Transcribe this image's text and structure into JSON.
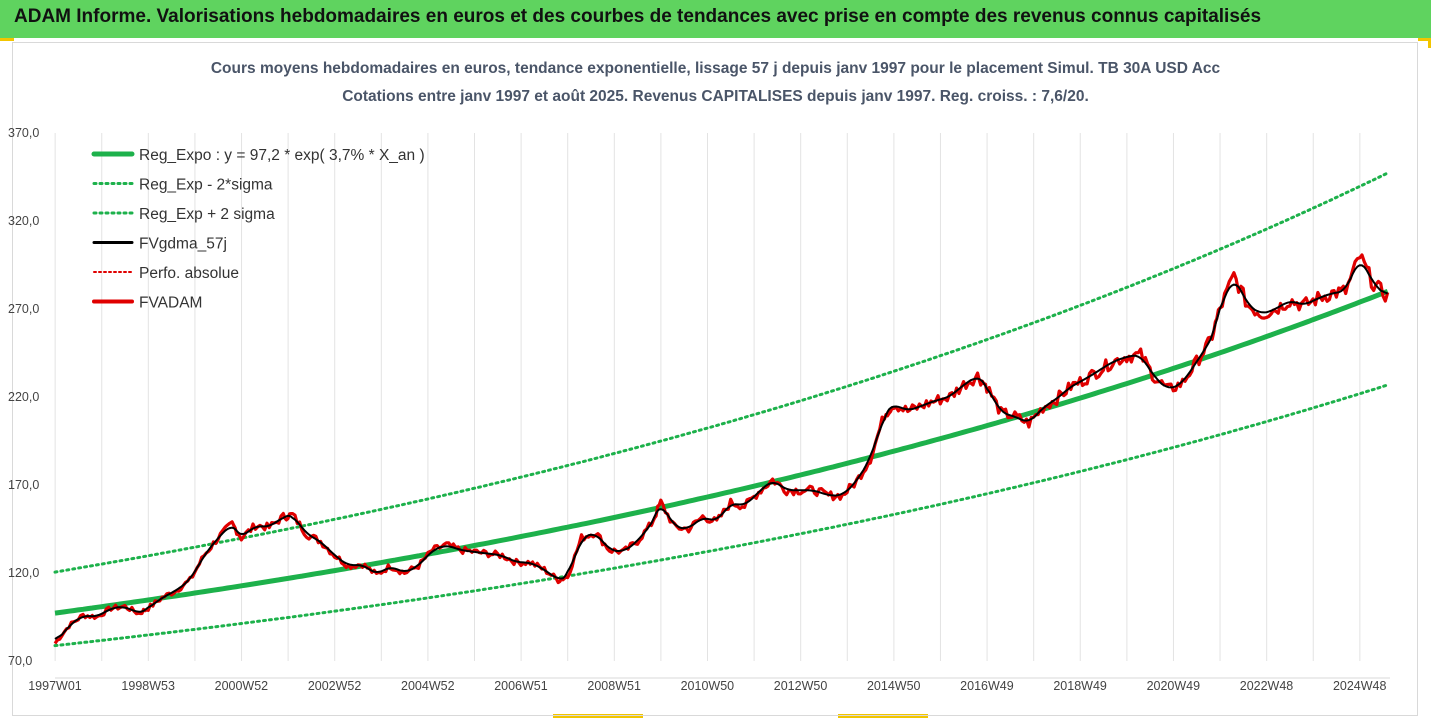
{
  "header": {
    "title": "ADAM Informe. Valorisations hebdomadaires en euros et des courbes de tendances avec prise en compte des revenus connus capitalisés"
  },
  "colors": {
    "header_bg": "#5fd35f",
    "green": "#1db14b",
    "black": "#000000",
    "red": "#e00000"
  },
  "chart_data": {
    "type": "line",
    "title_line1": "Cours moyens hebdomadaires en euros, tendance exponentielle, lissage 57 j depuis janv 1997 pour le placement Simul. TB 30A USD Acc",
    "title_line2": "Cotations entre janv 1997 et août 2025.  Revenus CAPITALISES depuis janv 1997. Reg. croiss. : 7,6/20.",
    "x_tick_labels": [
      "1997W01",
      "1998W53",
      "2000W52",
      "2002W52",
      "2004W52",
      "2006W51",
      "2008W51",
      "2010W50",
      "2012W50",
      "2014W50",
      "2016W49",
      "2018W49",
      "2020W49",
      "2022W48",
      "2024W48"
    ],
    "x_range_years": [
      1997.0,
      2025.65
    ],
    "y_ticks": [
      70,
      120,
      170,
      220,
      270,
      320,
      370
    ],
    "y_tick_labels": [
      "70,0",
      "120,0",
      "170,0",
      "220,0",
      "270,0",
      "320,0",
      "370,0"
    ],
    "ylim": [
      70,
      370
    ],
    "grid": "vertical",
    "legend_position": "top-left",
    "regression": {
      "a": 97.2,
      "rate": 0.037,
      "sigma_factor_low": 0.81,
      "sigma_factor_high": 1.24
    },
    "series": [
      {
        "name": "Reg_Expo : y = 97,2 * exp( 3,7% *  X_an )",
        "style": "solid-green"
      },
      {
        "name": "Reg_Exp - 2*sigma",
        "style": "dotted-green"
      },
      {
        "name": "Reg_Exp + 2 sigma",
        "style": "dotted-green"
      },
      {
        "name": "FVgdma_57j",
        "style": "solid-black"
      },
      {
        "name": "Perfo. absolue",
        "style": "dotted-red"
      },
      {
        "name": "FVADAM",
        "style": "solid-red",
        "x": [
          1997.0,
          1997.3,
          1997.6,
          1997.9,
          1998.2,
          1998.5,
          1998.8,
          1999.0,
          1999.3,
          1999.6,
          1999.9,
          2000.2,
          2000.5,
          2000.8,
          2001.0,
          2001.3,
          2001.6,
          2001.9,
          2002.1,
          2002.4,
          2002.7,
          2003.0,
          2003.3,
          2003.6,
          2003.9,
          2004.2,
          2004.5,
          2004.8,
          2005.1,
          2005.4,
          2005.7,
          2006.0,
          2006.3,
          2006.6,
          2006.9,
          2007.2,
          2007.5,
          2007.8,
          2008.0,
          2008.3,
          2008.6,
          2008.9,
          2009.2,
          2009.5,
          2009.8,
          2010.0,
          2010.3,
          2010.6,
          2010.9,
          2011.2,
          2011.5,
          2011.8,
          2012.1,
          2012.4,
          2012.7,
          2013.0,
          2013.3,
          2013.6,
          2013.9,
          2014.2,
          2014.5,
          2014.8,
          2015.0,
          2015.3,
          2015.6,
          2015.9,
          2016.2,
          2016.5,
          2016.8,
          2017.0,
          2017.3,
          2017.6,
          2017.9,
          2018.2,
          2018.5,
          2018.8,
          2019.1,
          2019.4,
          2019.7,
          2020.0,
          2020.3,
          2020.6,
          2020.9,
          2021.2,
          2021.5,
          2021.8,
          2022.0,
          2022.3,
          2022.6,
          2022.9,
          2023.2,
          2023.5,
          2023.8,
          2024.1,
          2024.4,
          2024.7,
          2025.0,
          2025.3,
          2025.6
        ],
        "y": [
          80,
          90,
          96,
          95,
          100,
          101,
          97,
          100,
          106,
          110,
          116,
          130,
          140,
          148,
          140,
          147,
          146,
          152,
          153,
          142,
          138,
          130,
          124,
          125,
          119,
          124,
          120,
          124,
          133,
          136,
          133,
          132,
          131,
          130,
          126,
          126,
          122,
          116,
          118,
          140,
          143,
          133,
          132,
          138,
          148,
          160,
          146,
          145,
          152,
          149,
          160,
          158,
          166,
          173,
          167,
          167,
          167,
          164,
          164,
          172,
          185,
          210,
          216,
          212,
          215,
          218,
          220,
          227,
          232,
          226,
          211,
          209,
          205,
          214,
          219,
          226,
          230,
          235,
          240,
          243,
          244,
          231,
          224,
          228,
          240,
          252,
          270,
          289,
          272,
          267,
          270,
          275,
          272,
          276,
          279,
          280,
          300,
          284,
          277
        ]
      }
    ]
  }
}
